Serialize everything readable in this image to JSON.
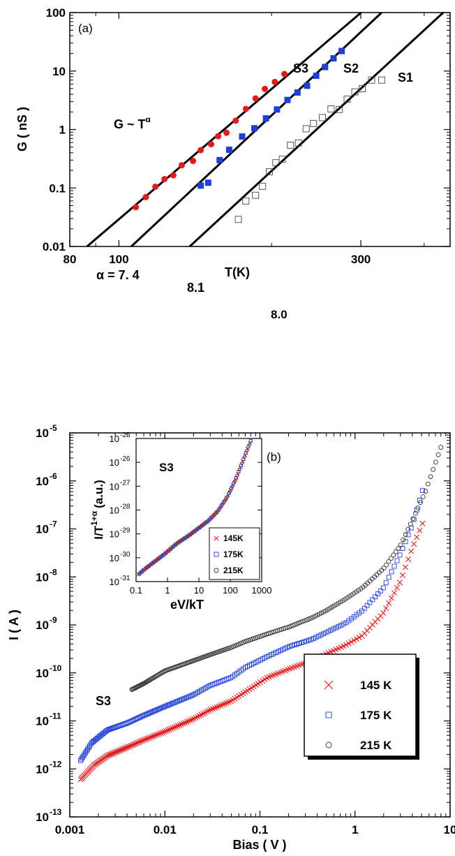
{
  "chart_data": [
    {
      "type": "scatter",
      "panel_label": "(a)",
      "xscale": "log",
      "yscale": "log",
      "xlabel": "T(K)",
      "ylabel": "G ( nS )",
      "xlim": [
        80,
        450
      ],
      "ylim": [
        0.01,
        100
      ],
      "xticks": [
        80,
        100,
        300
      ],
      "yticks": [
        {
          "v": 0.01,
          "label": "0.01"
        },
        {
          "v": 0.1,
          "label": "0.1"
        },
        {
          "v": 1,
          "label": "1"
        },
        {
          "v": 10,
          "label": "10"
        },
        {
          "v": 100,
          "label": "100"
        }
      ],
      "grid": false,
      "annotation_formula": "G  ~ T",
      "annotation_formula_sup": "α",
      "series": [
        {
          "name": "S3",
          "marker": "filled-circle",
          "color": "#e31a1c",
          "alpha_label": "α = 7. 4",
          "fit": {
            "exponent": 7.4,
            "x_range": [
              84,
              380
            ]
          },
          "x": [
            108,
            113,
            118,
            123,
            128,
            133,
            140,
            145,
            152,
            157,
            163,
            170,
            178,
            186,
            194,
            203,
            212
          ],
          "y": [
            0.047,
            0.07,
            0.105,
            0.142,
            0.165,
            0.245,
            0.29,
            0.445,
            0.56,
            0.77,
            0.88,
            1.42,
            2.25,
            3.4,
            4.95,
            6.5,
            8.9
          ]
        },
        {
          "name": "S2",
          "marker": "filled-square",
          "color": "#1f3fd6",
          "alpha_label": "8.1",
          "fit": {
            "exponent": 8.1,
            "x_range": [
              104,
              390
            ]
          },
          "x": [
            145,
            150,
            158,
            165,
            175,
            185,
            195,
            205,
            215,
            225,
            235,
            245,
            255,
            265,
            275
          ],
          "y": [
            0.11,
            0.123,
            0.3,
            0.45,
            0.76,
            1.05,
            1.55,
            2.2,
            3.2,
            4.3,
            5.6,
            8.3,
            11.7,
            16.5,
            22
          ]
        },
        {
          "name": "S1",
          "marker": "open-square",
          "color": "#444444",
          "alpha_label": "8.0",
          "fit": {
            "exponent": 8.0,
            "x_range": [
              138,
              450
            ]
          },
          "x": [
            172,
            178,
            186,
            192,
            198,
            204,
            210,
            218,
            226,
            234,
            242,
            252,
            262,
            272,
            282,
            292,
            302,
            315,
            330
          ],
          "y": [
            0.029,
            0.06,
            0.075,
            0.107,
            0.19,
            0.27,
            0.31,
            0.54,
            0.59,
            1.03,
            1.27,
            1.6,
            2.25,
            2.2,
            3.3,
            4.4,
            5.0,
            7.0,
            7.0
          ]
        }
      ]
    },
    {
      "type": "scatter",
      "panel_label": "(b)",
      "xscale": "log",
      "yscale": "log",
      "xlabel": "Bias ( V )",
      "ylabel": "I ( A )",
      "xlim": [
        0.001,
        10
      ],
      "ylim_exp": [
        -13,
        -5
      ],
      "xticks": [
        {
          "v": 0.001,
          "label": "0.001"
        },
        {
          "v": 0.01,
          "label": "0.01"
        },
        {
          "v": 0.1,
          "label": "0.1"
        },
        {
          "v": 1,
          "label": "1"
        },
        {
          "v": 10,
          "label": "10"
        }
      ],
      "yticks_exp": [
        "-13",
        "-12",
        "-11",
        "-10",
        "-9",
        "-8",
        "-7",
        "-6",
        "-5"
      ],
      "ytick_base": "10",
      "grid": false,
      "sample_label": "S3",
      "legend_position": "lower-right",
      "series": [
        {
          "name": "145 K",
          "marker": "x",
          "color": "#e31a1c",
          "v": [
            0.0013,
            0.0018,
            0.0025,
            0.004,
            0.006,
            0.01,
            0.02,
            0.03,
            0.05,
            0.07,
            0.12,
            0.2,
            0.35,
            0.5,
            0.8,
            1.2,
            2,
            3,
            4,
            5.5
          ],
          "i": [
            6e-13,
            1.2e-12,
            1.9e-12,
            2.8e-12,
            4e-12,
            6e-12,
            1.1e-11,
            1.7e-11,
            2.6e-11,
            4e-11,
            8e-11,
            1.2e-10,
            1.8e-10,
            2.5e-10,
            3.8e-10,
            6e-10,
            1.8e-09,
            8e-09,
            4e-08,
            1.8e-07
          ]
        },
        {
          "name": "175 K",
          "marker": "open-square",
          "color": "#1f3fd6",
          "v": [
            0.0013,
            0.0017,
            0.0025,
            0.004,
            0.006,
            0.01,
            0.02,
            0.03,
            0.05,
            0.07,
            0.12,
            0.2,
            0.35,
            0.5,
            0.8,
            1.2,
            2,
            3,
            4,
            5.5
          ],
          "i": [
            1.5e-12,
            3.5e-12,
            6.5e-12,
            9e-12,
            1.3e-11,
            2e-11,
            3.5e-11,
            5.5e-11,
            8e-11,
            1.3e-10,
            2.2e-10,
            3.5e-10,
            5e-10,
            7e-10,
            1.1e-09,
            2e-09,
            6e-09,
            3e-08,
            1.2e-07,
            1e-06
          ]
        },
        {
          "name": "215 K",
          "marker": "open-circle",
          "color": "#333333",
          "v": [
            0.0045,
            0.006,
            0.01,
            0.02,
            0.03,
            0.05,
            0.07,
            0.12,
            0.2,
            0.35,
            0.5,
            0.8,
            1.2,
            2,
            3,
            4,
            5.5,
            8
          ],
          "i": [
            4.5e-11,
            6e-11,
            1.1e-10,
            1.8e-10,
            2.4e-10,
            3.4e-10,
            4.5e-10,
            6.5e-10,
            9e-10,
            1.4e-09,
            2e-09,
            3.5e-09,
            6e-09,
            1.5e-08,
            4.5e-08,
            1.5e-07,
            6e-07,
            5e-06
          ]
        }
      ],
      "inset": {
        "sample_label": "S3",
        "xlabel": "eV/kT",
        "ylabel_main": "I/T",
        "ylabel_sup": "1+α",
        "ylabel_unit": "(a.u.)",
        "xlim": [
          0.1,
          1000
        ],
        "xticks": [
          {
            "v": 0.1,
            "label": "0.1"
          },
          {
            "v": 1,
            "label": "1"
          },
          {
            "v": 10,
            "label": "10"
          },
          {
            "v": 100,
            "label": "100"
          },
          {
            "v": 1000,
            "label": "1000"
          }
        ],
        "ylim_exp": [
          -31,
          -25
        ],
        "yticks_exp": [
          "-31",
          "-30",
          "-29",
          "-28",
          "-27",
          "-26",
          "-25"
        ],
        "ytick_base": "10",
        "legend": [
          "145K",
          "175K",
          "215K"
        ],
        "legend_position": "lower-right",
        "curve": {
          "x": [
            0.12,
            0.2,
            0.4,
            0.8,
            2,
            5,
            10,
            20,
            40,
            80,
            150,
            250,
            350,
            450
          ],
          "y_exp": [
            -30.7,
            -30.45,
            -30.15,
            -29.85,
            -29.4,
            -29.05,
            -28.75,
            -28.45,
            -28.05,
            -27.45,
            -26.7,
            -25.95,
            -25.45,
            -25.1
          ]
        }
      }
    }
  ]
}
